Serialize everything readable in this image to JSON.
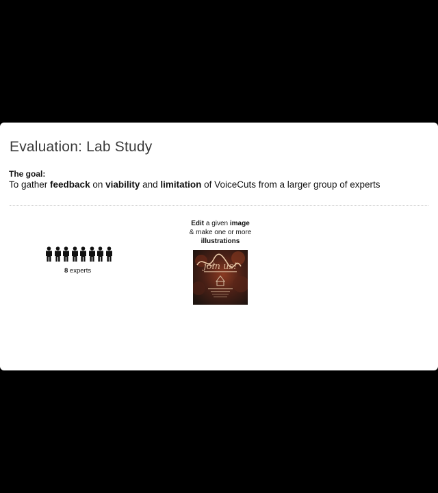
{
  "slide": {
    "title": "Evaluation: Lab Study",
    "goal_label": "The goal:",
    "goal": {
      "part1": "To gather ",
      "feedback": "feedback",
      "part2": " on ",
      "viability": "viability",
      "part3": " and ",
      "limitation": "limitation",
      "part4": " of VoiceCuts  from a larger group of experts"
    },
    "participants": {
      "icon": "person-icon",
      "count_value": 8,
      "count": "8",
      "label": " experts"
    },
    "task": {
      "edit": "Edit",
      "part1": " a given ",
      "image": "image",
      "line2": "& make one or more",
      "illustrations": "illustrations"
    },
    "thumbnail": {
      "script_text": "join us!"
    }
  }
}
